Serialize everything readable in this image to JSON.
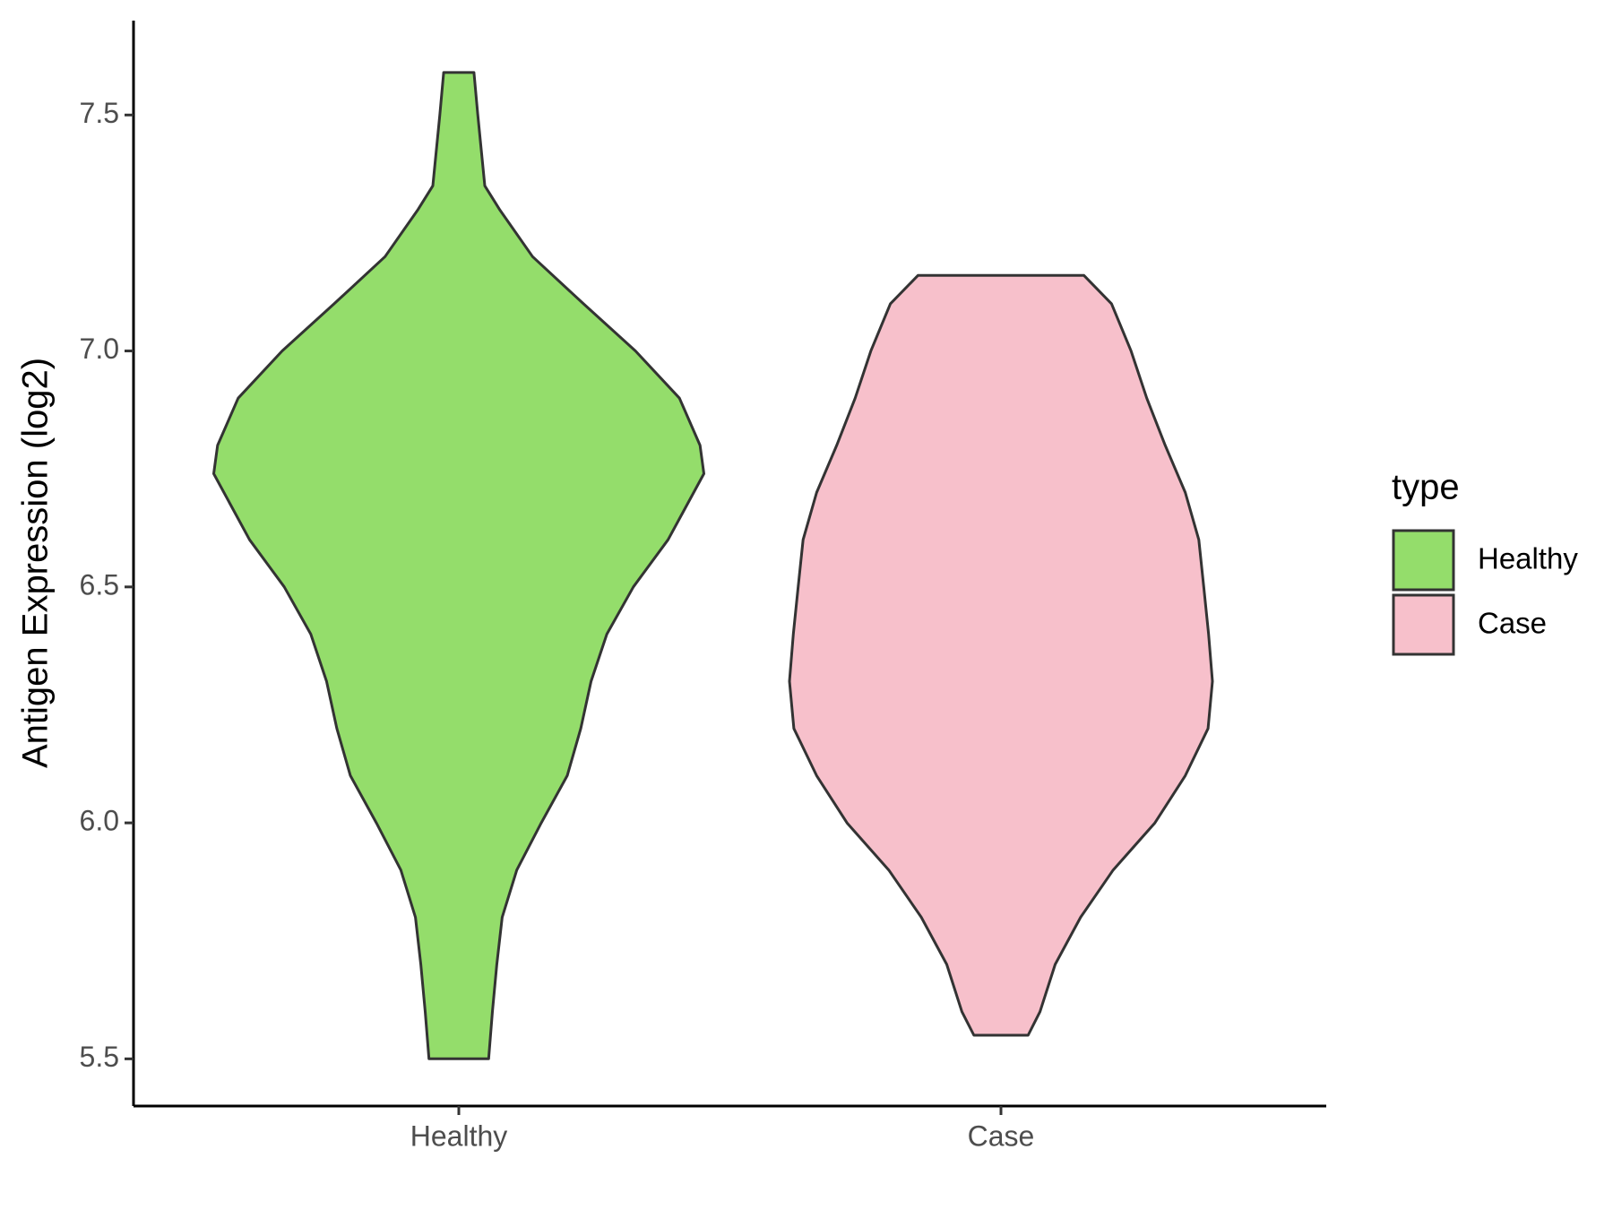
{
  "chart_data": {
    "type": "violin",
    "y_label": "Antigen Expression (log2)",
    "categories": [
      "Healthy",
      "Case"
    ],
    "xlim": [
      0.4,
      2.6
    ],
    "ylim": [
      5.4,
      7.7
    ],
    "yticks": [
      5.5,
      {
        "value": 6,
        "label": "6.0"
      },
      6.5,
      {
        "value": 7,
        "label": "7.0"
      },
      7.5
    ],
    "legend_title": "type",
    "legend_position": "right",
    "series": [
      {
        "name": "Healthy",
        "color": "#94dd6b",
        "y": [
          7.59,
          7.5,
          7.35,
          7.3,
          7.2,
          7.1,
          7.0,
          6.9,
          6.8,
          6.74,
          6.6,
          6.5,
          6.4,
          6.3,
          6.2,
          6.1,
          6.0,
          5.9,
          5.8,
          5.7,
          5.6,
          5.5
        ],
        "half_width": [
          0.028,
          0.035,
          0.048,
          0.075,
          0.136,
          0.23,
          0.326,
          0.407,
          0.445,
          0.452,
          0.386,
          0.322,
          0.273,
          0.244,
          0.225,
          0.2,
          0.152,
          0.107,
          0.08,
          0.07,
          0.062,
          0.055
        ]
      },
      {
        "name": "Case",
        "color": "#f7c0cb",
        "y": [
          7.16,
          7.1,
          7.0,
          6.9,
          6.8,
          6.7,
          6.6,
          6.5,
          6.4,
          6.3,
          6.2,
          6.1,
          6.0,
          5.9,
          5.8,
          5.7,
          5.6,
          5.55
        ],
        "half_width": [
          0.153,
          0.204,
          0.24,
          0.269,
          0.303,
          0.34,
          0.365,
          0.374,
          0.383,
          0.39,
          0.382,
          0.34,
          0.284,
          0.207,
          0.147,
          0.1,
          0.072,
          0.05
        ]
      }
    ]
  }
}
